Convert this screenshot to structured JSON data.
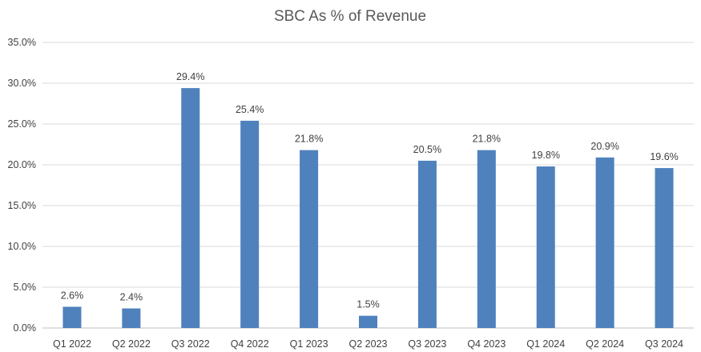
{
  "chart_data": {
    "type": "bar",
    "title": "SBC As % of Revenue",
    "xlabel": "",
    "ylabel": "",
    "categories": [
      "Q1 2022",
      "Q2 2022",
      "Q3 2022",
      "Q4 2022",
      "Q1 2023",
      "Q2 2023",
      "Q3 2023",
      "Q4 2023",
      "Q1 2024",
      "Q2 2024",
      "Q3 2024"
    ],
    "values": [
      2.6,
      2.4,
      29.4,
      25.4,
      21.8,
      1.5,
      20.5,
      21.8,
      19.8,
      20.9,
      19.6
    ],
    "data_labels": [
      "2.6%",
      "2.4%",
      "29.4%",
      "25.4%",
      "21.8%",
      "1.5%",
      "20.5%",
      "21.8%",
      "19.8%",
      "20.9%",
      "19.6%"
    ],
    "ylim": [
      0,
      35
    ],
    "yticks": [
      0,
      5,
      10,
      15,
      20,
      25,
      30,
      35
    ],
    "ytick_labels": [
      "0.0%",
      "5.0%",
      "10.0%",
      "15.0%",
      "20.0%",
      "25.0%",
      "30.0%",
      "35.0%"
    ],
    "grid": true,
    "legend": "none",
    "bar_color": "#4f81bd"
  }
}
